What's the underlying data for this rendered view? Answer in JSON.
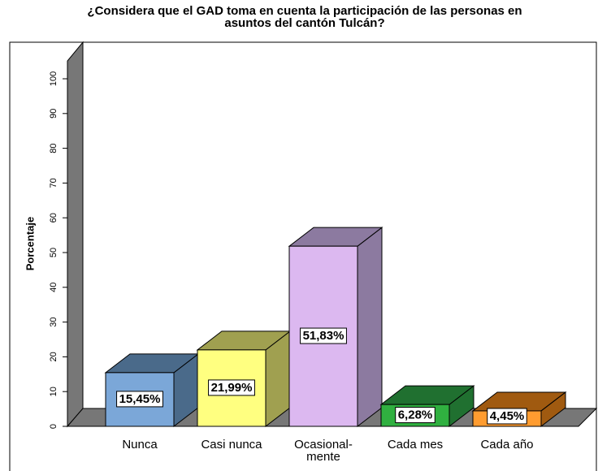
{
  "chart_data": {
    "type": "bar3d",
    "title": "¿Considera que el GAD toma en cuenta la participación de las personas en",
    "subtitle": "asuntos del cantón Tulcán?",
    "y_label": "Porcentaje",
    "categories": [
      "Nunca",
      "Casi nunca",
      "Ocasional-\nmente",
      "Cada    mes",
      "Cada año"
    ],
    "values": [
      15.45,
      21.99,
      51.83,
      6.28,
      4.45
    ],
    "value_labels": [
      "15,45%",
      "21,99%",
      "51,83%",
      "6,28%",
      "4,45%"
    ],
    "colors": [
      "#7ba7d8",
      "#ffff80",
      "#dcb8f0",
      "#30b040",
      "#ff9c30"
    ],
    "side_colors": [
      "#4a6a8a",
      "#a0a050",
      "#8c7aa0",
      "#207030",
      "#a05a10"
    ],
    "ylim": [
      0,
      100
    ],
    "yticks": [
      0,
      10,
      20,
      30,
      40,
      50,
      60,
      70,
      80,
      90,
      100
    ],
    "grid": false
  }
}
